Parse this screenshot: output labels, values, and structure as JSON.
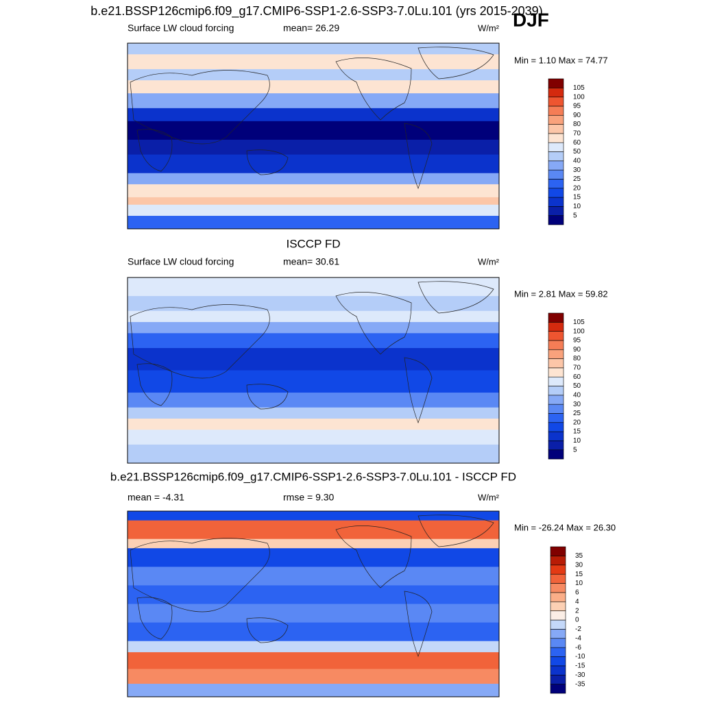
{
  "title": "b.e21.BSSP126cmip6.f09_g17.CMIP6-SSP1-2.6-SSP3-7.0Lu.101 (yrs 2015-2039)",
  "season": "DJF",
  "panels": [
    {
      "title": null,
      "left_label": "Surface LW cloud forcing",
      "center_label": "mean=  26.29",
      "units": "W/m²",
      "min_max": "Min =   1.10 Max =  74.77",
      "colorbar": {
        "levels": [
          5,
          10,
          15,
          20,
          25,
          30,
          40,
          50,
          60,
          70,
          80,
          90,
          95,
          100,
          105
        ],
        "colors": [
          "#00007a",
          "#0a1fa8",
          "#0b33cc",
          "#1148e6",
          "#2c63f2",
          "#5a88f4",
          "#86a9f6",
          "#b4cdf8",
          "#dde9fb",
          "#fde4d2",
          "#fcc6a8",
          "#f9a27c",
          "#f57d56",
          "#ee5530",
          "#d42a0e",
          "#800000"
        ]
      }
    },
    {
      "title": "ISCCP FD",
      "left_label": "Surface LW cloud forcing",
      "center_label": "mean=  30.61",
      "units": "W/m²",
      "min_max": "Min =   2.81 Max =  59.82",
      "colorbar": {
        "levels": [
          5,
          10,
          15,
          20,
          25,
          30,
          40,
          50,
          60,
          70,
          80,
          90,
          95,
          100,
          105
        ],
        "colors": [
          "#00007a",
          "#0a1fa8",
          "#0b33cc",
          "#1148e6",
          "#2c63f2",
          "#5a88f4",
          "#86a9f6",
          "#b4cdf8",
          "#dde9fb",
          "#fde4d2",
          "#fcc6a8",
          "#f9a27c",
          "#f57d56",
          "#ee5530",
          "#d42a0e",
          "#800000"
        ]
      }
    },
    {
      "title": "b.e21.BSSP126cmip6.f09_g17.CMIP6-SSP1-2.6-SSP3-7.0Lu.101 - ISCCP FD",
      "left_label": "mean =  -4.31",
      "center_label": "rmse =   9.30",
      "units": "W/m²",
      "min_max": "Min = -26.24 Max =  26.30",
      "colorbar": {
        "levels": [
          -35,
          -30,
          -15,
          -10,
          -6,
          -4,
          -2,
          0,
          2,
          4,
          6,
          10,
          15,
          30,
          35
        ],
        "colors": [
          "#00007a",
          "#0a1fa8",
          "#0b33cc",
          "#1148e6",
          "#2c63f2",
          "#5a88f4",
          "#86a9f6",
          "#c4d8f9",
          "#fbeee6",
          "#fcd0b4",
          "#fbae88",
          "#f78a62",
          "#f1633a",
          "#e33a14",
          "#b81c06",
          "#800000"
        ]
      }
    }
  ]
}
